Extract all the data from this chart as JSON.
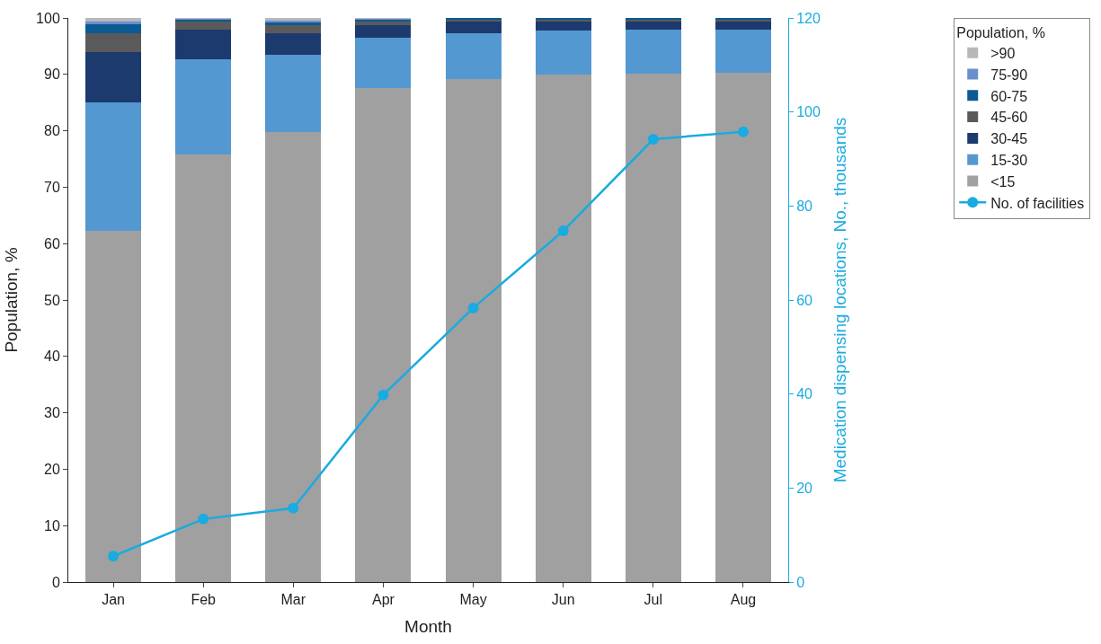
{
  "chart_data": {
    "type": "bar",
    "stacked": true,
    "xlabel": "Month",
    "ylabel": "Population, %",
    "y2label": "Medication dispensing locations, No., thousands",
    "legend_title": "Population, %",
    "categories": [
      "Jan",
      "Feb",
      "Mar",
      "Apr",
      "May",
      "Jun",
      "Jul",
      "Aug"
    ],
    "series": [
      {
        "name": "<15",
        "color": "#a0a0a0",
        "values": [
          62.3,
          75.8,
          79.7,
          87.6,
          89.2,
          89.9,
          90.1,
          90.3
        ]
      },
      {
        "name": "15-30",
        "color": "#5498d2",
        "values": [
          22.8,
          16.8,
          13.7,
          8.9,
          8.1,
          7.9,
          7.9,
          7.7
        ]
      },
      {
        "name": "30-45",
        "color": "#1d3a6e",
        "values": [
          8.8,
          5.4,
          3.9,
          2.2,
          2.1,
          1.7,
          1.5,
          1.5
        ]
      },
      {
        "name": "45-60",
        "color": "#5a5a5a",
        "values": [
          3.4,
          1.4,
          1.4,
          0.6,
          0.4,
          0.3,
          0.3,
          0.3
        ]
      },
      {
        "name": "60-75",
        "color": "#0c5a94",
        "values": [
          1.6,
          0.4,
          0.6,
          0.5,
          0.2,
          0.2,
          0.2,
          0.2
        ]
      },
      {
        "name": "75-90",
        "color": "#6a8fcf",
        "values": [
          0.4,
          0.1,
          0.2,
          0.1,
          null,
          null,
          null,
          null
        ]
      },
      {
        "name": ">90",
        "color": "#b8b8b8",
        "values": [
          0.7,
          0.1,
          0.5,
          0.1,
          null,
          null,
          null,
          null
        ]
      },
      {
        "name": "No. of facilities",
        "type": "line",
        "axis": "y2",
        "marker": "circle",
        "color": "#1aabe0",
        "values": [
          5.5,
          13.4,
          15.7,
          39.8,
          58.3,
          74.7,
          94.2,
          95.8
        ]
      }
    ],
    "ylim": [
      0,
      100
    ],
    "yticks": [
      0,
      10,
      20,
      30,
      40,
      50,
      60,
      70,
      80,
      90,
      100
    ],
    "y2lim": [
      0,
      120
    ],
    "y2ticks": [
      0,
      20,
      40,
      60,
      80,
      100,
      120
    ],
    "legend": "right"
  }
}
